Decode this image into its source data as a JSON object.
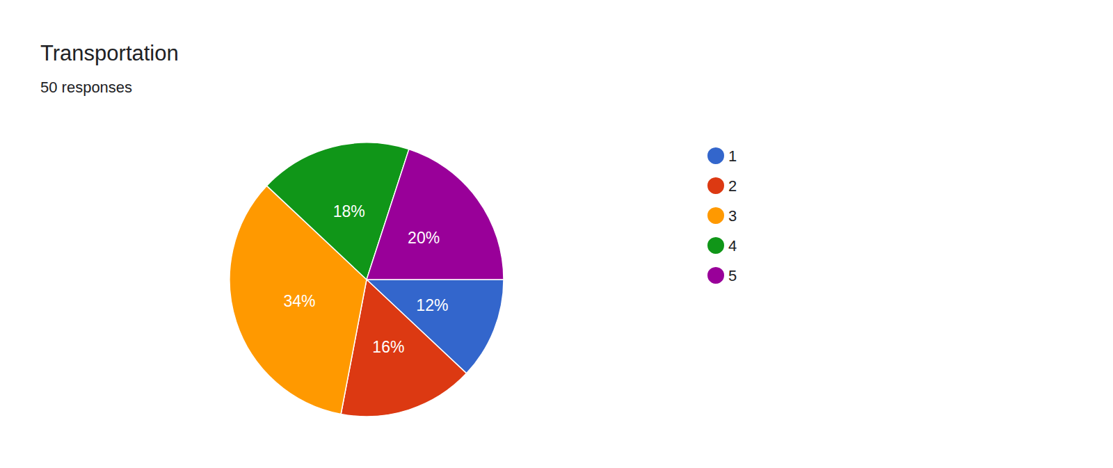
{
  "chart_data": {
    "type": "pie",
    "title": "Transportation",
    "subtitle": "50 responses",
    "categories": [
      "1",
      "2",
      "3",
      "4",
      "5"
    ],
    "values": [
      12,
      16,
      34,
      18,
      20
    ],
    "value_labels": [
      "12%",
      "16%",
      "34%",
      "18%",
      "20%"
    ],
    "colors": [
      "#3366cc",
      "#dc3912",
      "#ff9900",
      "#109618",
      "#990099"
    ],
    "data_labels": true,
    "legend": "right"
  }
}
